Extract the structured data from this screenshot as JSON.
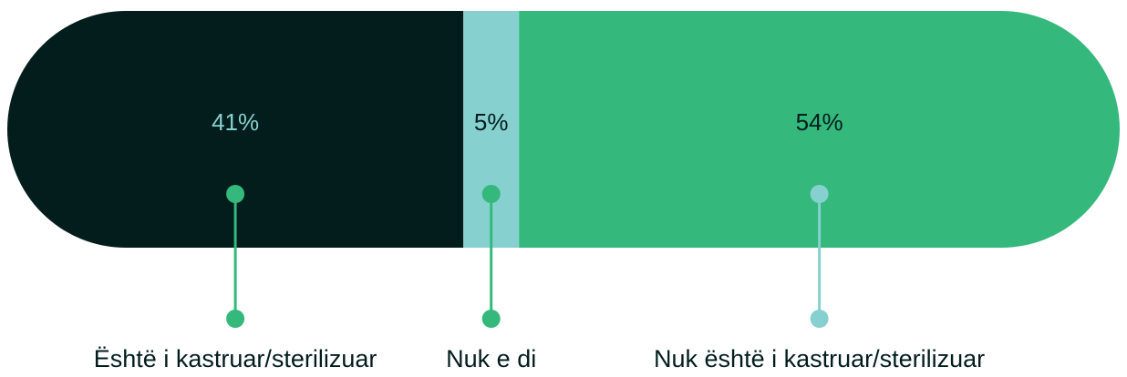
{
  "chart_data": {
    "type": "stacked-bar-100",
    "series": [
      {
        "name": "Është i kastruar/sterilizuar",
        "color": "#031d1d",
        "values": [
          41
        ],
        "value_labels": [
          "41%"
        ]
      },
      {
        "name": "Nuk e di",
        "color": "#86d1cf",
        "values": [
          5
        ],
        "value_labels": [
          "5%"
        ]
      },
      {
        "name": "Nuk është i kastruar/sterilizuar",
        "color": "#34b87c",
        "values": [
          54
        ],
        "value_labels": [
          "54%"
        ]
      }
    ]
  }
}
